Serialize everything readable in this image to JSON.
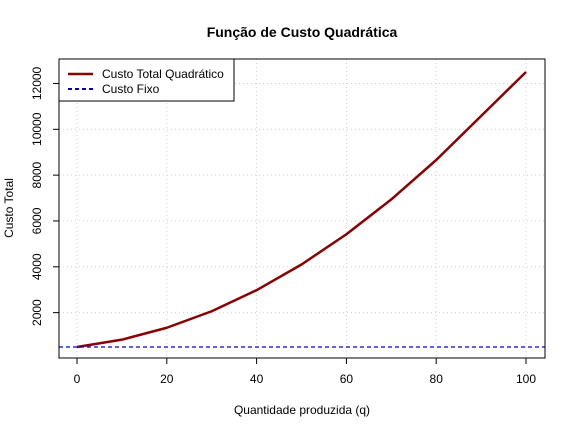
{
  "chart_data": {
    "type": "line",
    "title": "Função de Custo Quadrática",
    "xlabel": "Quantidade produzida (q)",
    "ylabel": "Custo Total",
    "xlim": [
      0,
      100
    ],
    "ylim": [
      500,
      12500
    ],
    "xticks": [
      0,
      20,
      40,
      60,
      80,
      100
    ],
    "yticks": [
      2000,
      4000,
      6000,
      8000,
      10000,
      12000
    ],
    "grid": true,
    "legend_position": "top-left",
    "series": [
      {
        "name": "Custo Total Quadrático",
        "color": "#8b0000",
        "style": "solid",
        "x": [
          0,
          10,
          20,
          30,
          40,
          50,
          60,
          70,
          80,
          90,
          100
        ],
        "y": [
          500,
          820,
          1340,
          2060,
          2980,
          4100,
          5420,
          6940,
          8660,
          10580,
          12500
        ]
      },
      {
        "name": "Custo Fixo",
        "color": "#0000cd",
        "style": "dashed",
        "hline": 500
      }
    ]
  }
}
